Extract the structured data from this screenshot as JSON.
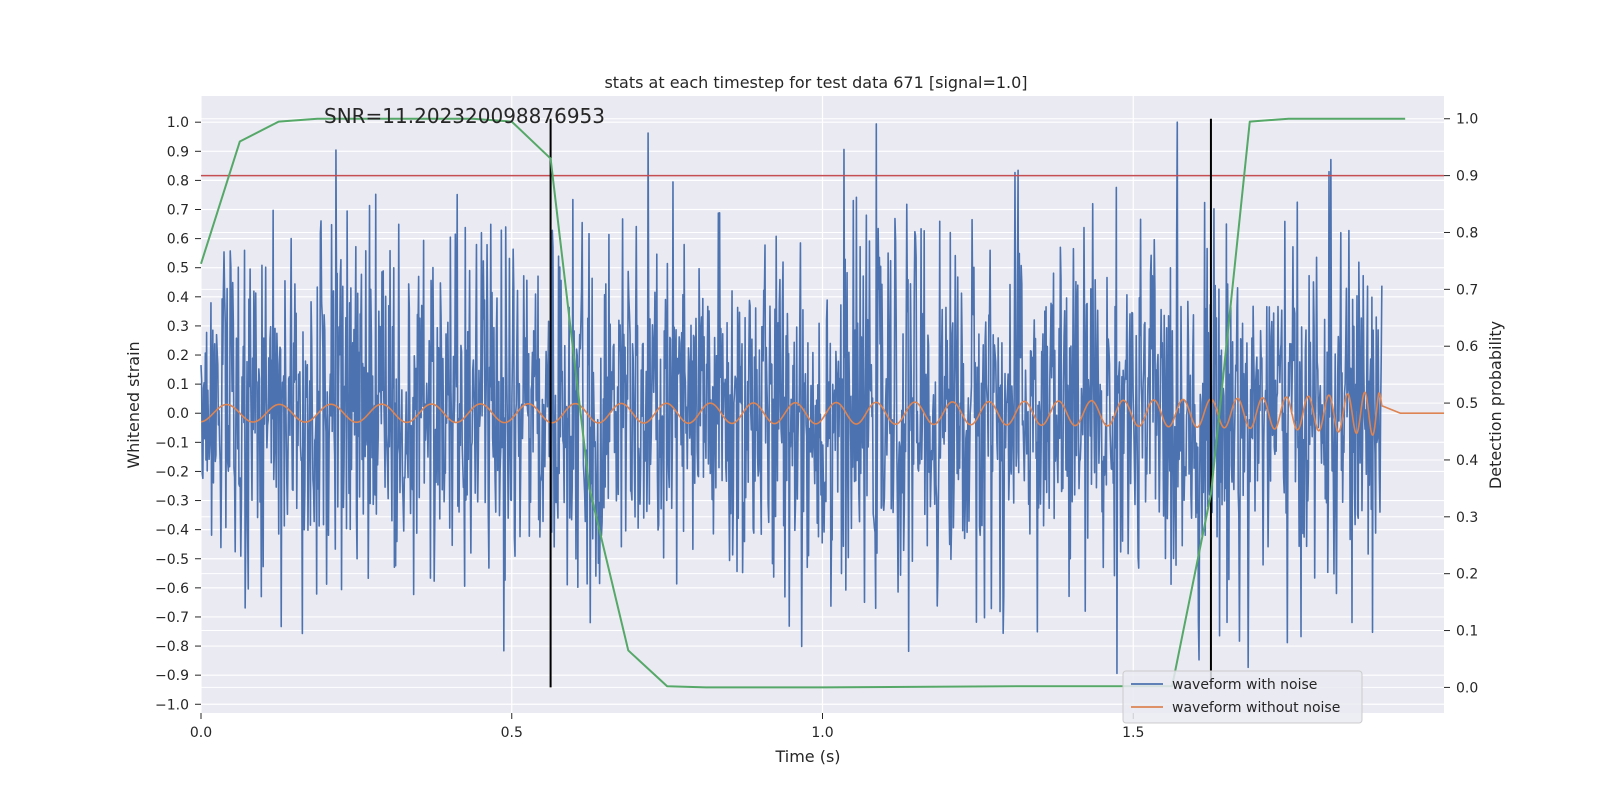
{
  "chart_data": {
    "type": "line",
    "title": "stats at each timestep for test data 671 [signal=1.0]",
    "xlabel": "Time (s)",
    "ylabel": "Whitened strain",
    "ylabel_right": "Detection probability",
    "annotation": "SNR=11.202320098876953",
    "xlim": [
      0.0,
      2.0
    ],
    "ylim": [
      -1.03,
      1.09
    ],
    "ylim_right": [
      -0.045,
      1.04
    ],
    "x_ticks": [
      "0.0",
      "0.5",
      "1.0",
      "1.5"
    ],
    "x_tick_values": [
      0.0,
      0.5,
      1.0,
      1.5
    ],
    "y_ticks": [
      "1.0",
      "0.9",
      "0.8",
      "0.7",
      "0.6",
      "0.5",
      "0.4",
      "0.3",
      "0.2",
      "0.1",
      "0.0",
      "−0.1",
      "−0.2",
      "−0.3",
      "−0.4",
      "−0.5",
      "−0.6",
      "−0.7",
      "−0.8",
      "−0.9",
      "−1.0"
    ],
    "y_tick_values": [
      1.0,
      0.9,
      0.8,
      0.7,
      0.6,
      0.5,
      0.4,
      0.3,
      0.2,
      0.1,
      0.0,
      -0.1,
      -0.2,
      -0.3,
      -0.4,
      -0.5,
      -0.6,
      -0.7,
      -0.8,
      -0.9,
      -1.0
    ],
    "y_right_ticks": [
      "1.0",
      "0.9",
      "0.8",
      "0.7",
      "0.6",
      "0.5",
      "0.4",
      "0.3",
      "0.2",
      "0.1",
      "0.0"
    ],
    "y_right_tick_values": [
      1.0,
      0.9,
      0.8,
      0.7,
      0.6,
      0.5,
      0.4,
      0.3,
      0.2,
      0.1,
      0.0
    ],
    "threshold_right": 0.9,
    "vertical_lines": [
      0.5625,
      1.625
    ],
    "vertical_line_range_right": [
      0.0,
      1.0
    ],
    "grid": true,
    "legend_position": "lower-right",
    "series": [
      {
        "name": "waveform with noise",
        "color": "#4c72b0",
        "axis": "left",
        "kind": "noise",
        "duration": 1.9,
        "n": 1900,
        "amplitude_std": 0.3
      },
      {
        "name": "waveform without noise",
        "color": "#dd8452",
        "axis": "left",
        "kind": "chirp",
        "duration": 1.9,
        "merger_time": 1.956
      },
      {
        "name": "",
        "color": "#55a868",
        "axis": "right",
        "x": [
          0.0,
          0.0625,
          0.125,
          0.1875,
          0.25,
          0.3125,
          0.375,
          0.4375,
          0.5,
          0.5625,
          0.625,
          0.6875,
          0.75,
          0.8125,
          1.0,
          1.3125,
          1.5625,
          1.625,
          1.6875,
          1.75,
          1.8125,
          1.875,
          1.9375
        ],
        "values": [
          0.745,
          0.96,
          0.995,
          1.0,
          1.0,
          1.0,
          1.0,
          1.0,
          0.995,
          0.93,
          0.35,
          0.065,
          0.002,
          0.0,
          0.0,
          0.002,
          0.002,
          0.34,
          0.995,
          1.0,
          1.0,
          1.0,
          1.0
        ]
      }
    ],
    "threshold_color": "#c44e52",
    "vline_color": "#000000"
  }
}
